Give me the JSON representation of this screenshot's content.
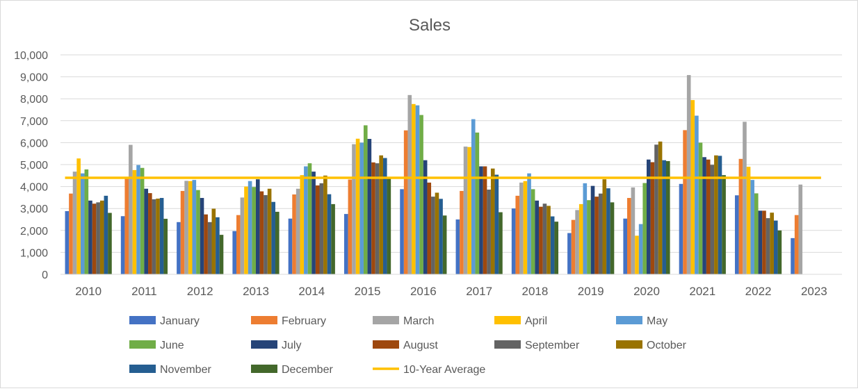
{
  "chart_data": {
    "type": "bar",
    "title": "Sales",
    "xlabel": "",
    "ylabel": "",
    "ylim": [
      0,
      10000
    ],
    "ytick_step": 1000,
    "grid": true,
    "legend_position": "bottom",
    "categories": [
      "2010",
      "2011",
      "2012",
      "2013",
      "2014",
      "2015",
      "2016",
      "2017",
      "2018",
      "2019",
      "2020",
      "2021",
      "2022",
      "2023"
    ],
    "series": [
      {
        "name": "January",
        "color": "#4472C4",
        "values": [
          2880,
          2650,
          2380,
          1970,
          2540,
          2750,
          3880,
          2500,
          3000,
          1880,
          2540,
          4120,
          3600,
          1650
        ]
      },
      {
        "name": "February",
        "color": "#ED7D31",
        "values": [
          3680,
          4350,
          3800,
          2700,
          3640,
          4320,
          6560,
          3800,
          3580,
          2480,
          3480,
          6570,
          5260,
          2700
        ]
      },
      {
        "name": "March",
        "color": "#A5A5A5",
        "values": [
          4680,
          5900,
          4260,
          3500,
          3900,
          5930,
          8170,
          5820,
          4180,
          2930,
          3960,
          9080,
          6950,
          4090
        ]
      },
      {
        "name": "April",
        "color": "#FFC000",
        "values": [
          5280,
          4750,
          4250,
          4000,
          4520,
          6180,
          7760,
          5800,
          4250,
          3200,
          1760,
          7940,
          4900,
          null
        ]
      },
      {
        "name": "May",
        "color": "#5B9BD5",
        "values": [
          4600,
          4980,
          4300,
          4250,
          4920,
          6000,
          7700,
          7070,
          4600,
          4150,
          2290,
          7230,
          4300,
          null
        ]
      },
      {
        "name": "June",
        "color": "#70AD47",
        "values": [
          4780,
          4850,
          3840,
          3980,
          5060,
          6790,
          7260,
          6460,
          3880,
          3380,
          4160,
          6000,
          3690,
          null
        ]
      },
      {
        "name": "July",
        "color": "#264478",
        "values": [
          3360,
          3900,
          3480,
          4330,
          4680,
          6170,
          5200,
          4920,
          3360,
          4030,
          5230,
          5340,
          2900,
          null
        ]
      },
      {
        "name": "August",
        "color": "#9E480E",
        "values": [
          3220,
          3700,
          2730,
          3780,
          4050,
          5100,
          4180,
          4920,
          3080,
          3540,
          5110,
          5230,
          2900,
          null
        ]
      },
      {
        "name": "September",
        "color": "#636363",
        "values": [
          3280,
          3420,
          2380,
          3610,
          4150,
          5060,
          3540,
          3860,
          3220,
          3680,
          5910,
          4990,
          2560,
          null
        ]
      },
      {
        "name": "October",
        "color": "#997300",
        "values": [
          3360,
          3450,
          2990,
          3900,
          4500,
          5420,
          3720,
          4820,
          3120,
          4330,
          6050,
          5420,
          2810,
          null
        ]
      },
      {
        "name": "November",
        "color": "#255E91",
        "values": [
          3580,
          3480,
          2600,
          3300,
          3650,
          5300,
          3440,
          4540,
          2640,
          3920,
          5200,
          5400,
          2450,
          null
        ]
      },
      {
        "name": "December",
        "color": "#43682B",
        "values": [
          2800,
          2530,
          1800,
          2850,
          3200,
          4380,
          2680,
          2830,
          2400,
          3280,
          5160,
          4520,
          2000,
          null
        ]
      }
    ],
    "average_line": {
      "name": "10-Year Average",
      "color": "#FFC000",
      "value": 4400
    }
  }
}
